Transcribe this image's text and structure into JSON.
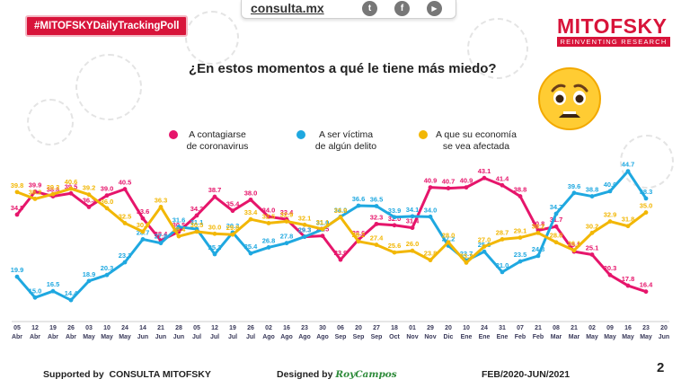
{
  "header": {
    "hashtag": "#MITOFSKYDailyTrackingPoll",
    "site": "consulta.mx",
    "social": [
      {
        "icon": "twitter-icon",
        "glyph": "t"
      },
      {
        "icon": "facebook-icon",
        "glyph": "f"
      },
      {
        "icon": "youtube-icon",
        "glyph": "▶"
      }
    ],
    "brand": "MITOFSKY",
    "brand_tagline": "REINVENTING RESEARCH"
  },
  "question": "¿En estos momentos a qué le tiene más miedo?",
  "legend": [
    {
      "label_line1": "A contagiarse",
      "label_line2": "de coronavirus",
      "color": "#e6156b"
    },
    {
      "label_line1": "A ser víctima",
      "label_line2": "de algún delito",
      "color": "#1fa8e0"
    },
    {
      "label_line1": "A que su economía",
      "label_line2": "se vea afectada",
      "color": "#f2b705"
    }
  ],
  "chart_data": {
    "type": "line",
    "title": "¿En estos momentos a qué le tiene más miedo?",
    "xlabel": "",
    "ylabel": "",
    "ylim": [
      10,
      48
    ],
    "grid": false,
    "categories": [
      [
        "05",
        "Abr"
      ],
      [
        "12",
        "Abr"
      ],
      [
        "19",
        "Abr"
      ],
      [
        "26",
        "Abr"
      ],
      [
        "03",
        "May"
      ],
      [
        "10",
        "May"
      ],
      [
        "24",
        "May"
      ],
      [
        "14",
        "Jun"
      ],
      [
        "21",
        "Jun"
      ],
      [
        "28",
        "Jun"
      ],
      [
        "05",
        "Jul"
      ],
      [
        "12",
        "Jul"
      ],
      [
        "19",
        "Jul"
      ],
      [
        "26",
        "Jul"
      ],
      [
        "02",
        "Ago"
      ],
      [
        "16",
        "Ago"
      ],
      [
        "23",
        "Ago"
      ],
      [
        "30",
        "Ago"
      ],
      [
        "06",
        "Sep"
      ],
      [
        "20",
        "Sep"
      ],
      [
        "27",
        "Sep"
      ],
      [
        "18",
        "Oct"
      ],
      [
        "01",
        "Nov"
      ],
      [
        "29",
        "Nov"
      ],
      [
        "20",
        "Dic"
      ],
      [
        "10",
        "Ene"
      ],
      [
        "24",
        "Ene"
      ],
      [
        "31",
        "Ene"
      ],
      [
        "07",
        "Feb"
      ],
      [
        "21",
        "Feb"
      ],
      [
        "08",
        "Mar"
      ],
      [
        "21",
        "Mar"
      ],
      [
        "02",
        "May"
      ],
      [
        "09",
        "May"
      ],
      [
        "16",
        "May"
      ],
      [
        "23",
        "May"
      ],
      [
        "20",
        "Jun"
      ]
    ],
    "series": [
      {
        "name": "A contagiarse de coronavirus",
        "color": "#e6156b",
        "values": [
          34.5,
          39.9,
          38.8,
          39.5,
          36.3,
          39.0,
          40.5,
          33.6,
          28.4,
          30.5,
          34.3,
          38.7,
          35.4,
          38.0,
          34.0,
          33.4,
          29.3,
          29.5,
          23.9,
          28.6,
          32.3,
          32.0,
          31.4,
          40.9,
          40.7,
          40.9,
          43.1,
          41.4,
          38.8,
          30.8,
          31.7,
          25.8,
          25.1,
          20.3,
          17.8,
          16.4,
          null
        ]
      },
      {
        "name": "A ser víctima de algún delito",
        "color": "#1fa8e0",
        "values": [
          19.9,
          15.0,
          16.5,
          14.4,
          18.9,
          20.3,
          23.3,
          28.7,
          27.8,
          31.6,
          31.1,
          25.2,
          30.3,
          25.4,
          26.8,
          27.8,
          29.3,
          31.0,
          34.0,
          36.6,
          36.5,
          33.9,
          34.1,
          34.0,
          27.2,
          23.7,
          25.8,
          21.0,
          23.5,
          24.8,
          34.7,
          39.6,
          38.8,
          40.0,
          44.7,
          38.3,
          null
        ]
      },
      {
        "name": "A que su economía se vea afectada",
        "color": "#f2b705",
        "values": [
          39.8,
          38.2,
          39.3,
          40.6,
          39.2,
          36.0,
          32.5,
          30.5,
          36.3,
          29.4,
          30.5,
          30.0,
          29.8,
          33.4,
          32.5,
          32.9,
          32.1,
          31.1,
          33.9,
          28.2,
          27.4,
          25.6,
          26.0,
          23.8,
          28.0,
          23.2,
          27.0,
          28.7,
          29.1,
          30.2,
          28.0,
          26.1,
          30.2,
          32.9,
          31.8,
          35.0,
          null
        ]
      }
    ]
  },
  "footer": {
    "supported_by": "Supported by",
    "supporters": "CONSULTA   MITOFSKY",
    "designed_by": "Designed by",
    "designer": "RoyCampos",
    "period": "FEB/2020-JUN/2021",
    "page": "2"
  },
  "colors": {
    "brand": "#d8143a",
    "axis_text": "#3a3a5a"
  }
}
